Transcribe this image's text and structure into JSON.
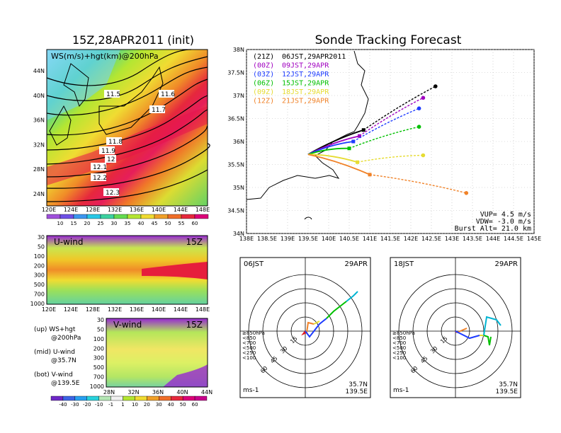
{
  "left_title": "15Z,28APR2011 (init)",
  "right_title": "Sonde Tracking Forecast",
  "map_panel": {
    "label": "WS(m/s)+hgt(km)@200hPa",
    "lat_ticks": [
      "44N",
      "40N",
      "36N",
      "32N",
      "28N",
      "24N"
    ],
    "lon_ticks": [
      "120E",
      "124E",
      "128E",
      "132E",
      "136E",
      "140E",
      "144E",
      "148E"
    ],
    "contour_labels": [
      "11.5",
      "11.6",
      "11.7",
      "11.8",
      "11.9",
      "12",
      "12.1",
      "12.2",
      "12.3"
    ],
    "colorbar_ticks": [
      "10",
      "15",
      "20",
      "25",
      "30",
      "35",
      "40",
      "45",
      "50",
      "55",
      "60"
    ]
  },
  "u_panel": {
    "label": "U-wind",
    "time": "15Z",
    "p_ticks": [
      "30",
      "50",
      "100",
      "200",
      "300",
      "500",
      "700",
      "1000"
    ],
    "lon_ticks": [
      "120E",
      "124E",
      "128E",
      "132E",
      "136E",
      "140E",
      "144E",
      "148E"
    ]
  },
  "v_panel": {
    "label": "V-wind",
    "time": "15Z",
    "p_ticks": [
      "30",
      "50",
      "100",
      "200",
      "300",
      "500",
      "700",
      "1000"
    ],
    "lat_ticks": [
      "28N",
      "32N",
      "36N",
      "40N",
      "44N"
    ]
  },
  "notes": [
    {
      "line1": "(up) WS+hgt",
      "line2": "@200hPa"
    },
    {
      "line1": "(mid) U-wind",
      "line2": "@35.7N"
    },
    {
      "line1": "(bot) V-wind",
      "line2": "@139.5E"
    }
  ],
  "bottom_colorbar_ticks": [
    "-40",
    "-30",
    "-20",
    "-10",
    "-1",
    "1",
    "10",
    "20",
    "30",
    "40",
    "50",
    "60"
  ],
  "chart_data": {
    "type": "line",
    "title": "Sonde Tracking Forecast",
    "x_ticks": [
      "138E",
      "138.5E",
      "139E",
      "139.5E",
      "140E",
      "140.5E",
      "141E",
      "141.5E",
      "142E",
      "142.5E",
      "143E",
      "143.5E",
      "144E",
      "144.5E",
      "145E"
    ],
    "y_ticks": [
      "38N",
      "37.5N",
      "37N",
      "36.5N",
      "36N",
      "35.5N",
      "35N",
      "34.5N",
      "34N"
    ],
    "xlim": [
      138,
      145
    ],
    "ylim": [
      34,
      38
    ],
    "launch": {
      "lon": 139.5,
      "lat": 35.72
    },
    "legend": [
      {
        "utc": "(21Z)",
        "jst": "06JST,29APR2011",
        "color": "#000000"
      },
      {
        "utc": "(00Z)",
        "jst": "09JST,29APR",
        "color": "#a000c0"
      },
      {
        "utc": "(03Z)",
        "jst": "12JST,29APR",
        "color": "#1e3cff"
      },
      {
        "utc": "(06Z)",
        "jst": "15JST,29APR",
        "color": "#00c000"
      },
      {
        "utc": "(09Z)",
        "jst": "18JST,29APR",
        "color": "#e6dc32"
      },
      {
        "utc": "(12Z)",
        "jst": "21JST,29APR",
        "color": "#f08228"
      }
    ],
    "series": [
      {
        "color": "#000000",
        "burst": [
          140.85,
          36.25
        ],
        "land": [
          142.6,
          37.2
        ]
      },
      {
        "color": "#a000c0",
        "burst": [
          140.75,
          36.12
        ],
        "land": [
          142.3,
          36.95
        ]
      },
      {
        "color": "#1e3cff",
        "burst": [
          140.6,
          36.0
        ],
        "land": [
          142.2,
          36.72
        ]
      },
      {
        "color": "#00c000",
        "burst": [
          140.5,
          35.85
        ],
        "land": [
          142.2,
          36.32
        ]
      },
      {
        "color": "#e6dc32",
        "burst": [
          140.7,
          35.55
        ],
        "land": [
          142.3,
          35.7
        ]
      },
      {
        "color": "#f08228",
        "burst": [
          141.0,
          35.28
        ],
        "land": [
          143.35,
          34.88
        ]
      }
    ],
    "params": [
      {
        "name": "VUP=",
        "value": "4.5",
        "unit": "m/s"
      },
      {
        "name": "VDW=",
        "value": "-3.0",
        "unit": "m/s"
      },
      {
        "name": "Burst Alt=",
        "value": "21.0",
        "unit": "km"
      }
    ]
  },
  "hodo_left": {
    "time": "06JST",
    "date": "29APR",
    "rings": [
      "15",
      "30",
      "45",
      "60"
    ],
    "legend": [
      {
        "label": "≥850hPa",
        "color": "#e11e1e"
      },
      {
        "label": "<850",
        "color": "#f08228"
      },
      {
        "label": "<700",
        "color": "#e6dc32"
      },
      {
        "label": "<500",
        "color": "#00c000"
      },
      {
        "label": "<250",
        "color": "#00b4d2"
      },
      {
        "label": "<100",
        "color": "#1e3cff"
      }
    ],
    "unit": "ms-1",
    "lat": "35.7N",
    "lon": "139.5E"
  },
  "hodo_right": {
    "time": "18JST",
    "date": "29APR",
    "rings": [
      "15",
      "30",
      "45",
      "60"
    ],
    "unit": "ms-1",
    "lat": "35.7N",
    "lon": "139.5E"
  }
}
